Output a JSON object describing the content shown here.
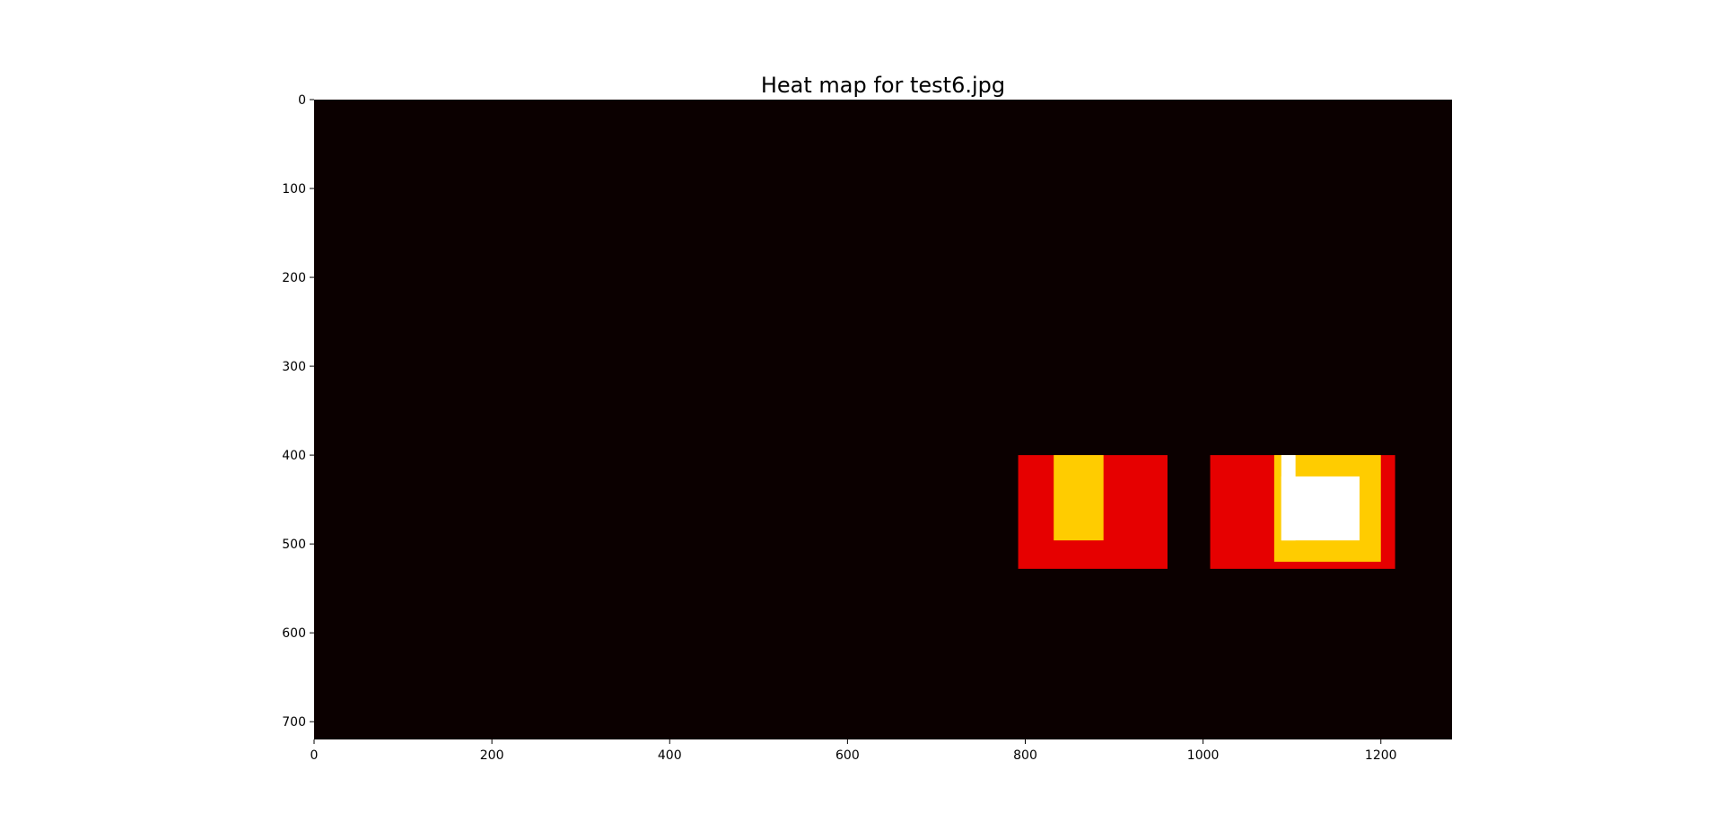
{
  "chart_data": {
    "type": "heatmap",
    "title": "Heat map for test6.jpg",
    "xlabel": "",
    "ylabel": "",
    "xlim": [
      0,
      1280
    ],
    "ylim": [
      720,
      0
    ],
    "x_ticks": [
      0,
      200,
      400,
      600,
      800,
      1000,
      1200
    ],
    "y_ticks": [
      0,
      100,
      200,
      300,
      400,
      500,
      600,
      700
    ],
    "colormap": "hot",
    "colors": {
      "background": "#0b0000",
      "level_1": "#e60000",
      "level_2": "#ffcc00",
      "level_3": "#ffffff"
    },
    "regions": [
      {
        "x": [
          792,
          960
        ],
        "y": [
          400,
          528
        ],
        "level": 1
      },
      {
        "x": [
          1008,
          1216
        ],
        "y": [
          400,
          528
        ],
        "level": 1
      },
      {
        "x": [
          832,
          888
        ],
        "y": [
          400,
          496
        ],
        "level": 2
      },
      {
        "x": [
          1080,
          1200
        ],
        "y": [
          400,
          520
        ],
        "level": 2
      },
      {
        "x": [
          1088,
          1104
        ],
        "y": [
          400,
          496
        ],
        "level": 3
      },
      {
        "x": [
          1088,
          1176
        ],
        "y": [
          424,
          496
        ],
        "level": 3
      }
    ],
    "grid": false
  }
}
